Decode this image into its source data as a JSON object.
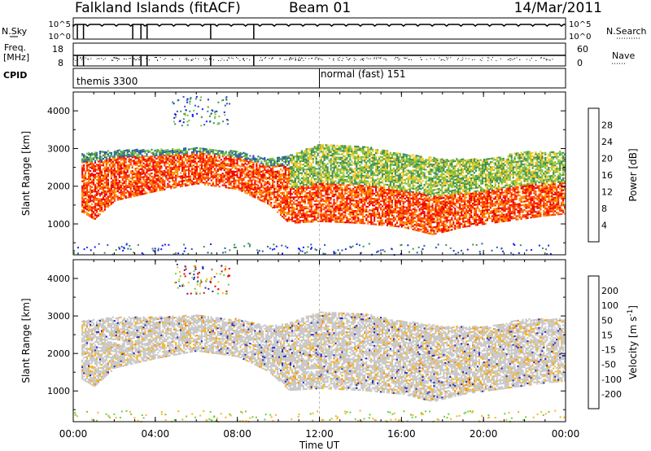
{
  "header": {
    "station": "Falkland Islands (fitACF)",
    "beam": "Beam 01",
    "date": "14/Mar/2011"
  },
  "nsky_panel": {
    "left_label": "N.Sky",
    "right_label": "N.Search",
    "left_ticks": [
      "10^5",
      "10^0"
    ],
    "right_ticks": [
      "10^5",
      "10^0"
    ]
  },
  "freq_panel": {
    "left_label_line1": "Freq.",
    "left_label_line2": "[MHz]",
    "right_label": "Nave",
    "left_ticks": [
      "18",
      "8"
    ],
    "right_ticks": [
      "60",
      "0"
    ]
  },
  "cpid_panel": {
    "label": "CPID",
    "modes": [
      {
        "name": "themis 3300",
        "start_hour": 0.0
      },
      {
        "name": "normal (fast) 151",
        "start_hour": 12.0
      }
    ]
  },
  "chart_data": [
    {
      "type": "heatmap",
      "title": "Power",
      "ylabel": "Slant Range [km]",
      "xlabel": "Time UT",
      "xlim_hours": [
        0,
        24
      ],
      "ylim": [
        180,
        4500
      ],
      "x_ticks": [
        "00:00",
        "04:00",
        "08:00",
        "12:00",
        "16:00",
        "20:00",
        "00:00"
      ],
      "y_ticks": [
        1000,
        2000,
        3000,
        4000
      ],
      "colorbar": {
        "label": "Power [dB]",
        "ticks": [
          4,
          8,
          12,
          16,
          20,
          24,
          28
        ],
        "colors": [
          "#1a1aff",
          "#2e57b0",
          "#3c8f55",
          "#7ac043",
          "#f2c81f",
          "#ff8c00",
          "#ff4000",
          "#ee0000"
        ]
      },
      "echo_band_lower_km": [
        [
          0.4,
          1300
        ],
        [
          1.0,
          1100
        ],
        [
          2.0,
          1600
        ],
        [
          4.0,
          1850
        ],
        [
          6.0,
          2050
        ],
        [
          8.0,
          1900
        ],
        [
          9.5,
          1500
        ],
        [
          10.5,
          1000
        ],
        [
          12.0,
          1050
        ],
        [
          14.0,
          1000
        ],
        [
          16.0,
          900
        ],
        [
          17.5,
          700
        ],
        [
          19.0,
          900
        ],
        [
          21.0,
          1050
        ],
        [
          23.0,
          1200
        ],
        [
          24.0,
          1250
        ]
      ],
      "echo_band_upper_km": [
        [
          0.4,
          2850
        ],
        [
          2.0,
          2950
        ],
        [
          4.0,
          2950
        ],
        [
          6.0,
          3000
        ],
        [
          8.0,
          2900
        ],
        [
          9.5,
          2700
        ],
        [
          10.5,
          2800
        ],
        [
          12.0,
          3100
        ],
        [
          14.0,
          3050
        ],
        [
          16.0,
          2850
        ],
        [
          18.0,
          2700
        ],
        [
          20.0,
          2700
        ],
        [
          22.0,
          2900
        ],
        [
          24.0,
          2900
        ]
      ]
    },
    {
      "type": "heatmap",
      "title": "Velocity",
      "ylabel": "Slant Range [km]",
      "xlabel": "Time UT",
      "xlim_hours": [
        0,
        24
      ],
      "ylim": [
        180,
        4500
      ],
      "x_ticks": [
        "00:00",
        "04:00",
        "08:00",
        "12:00",
        "16:00",
        "20:00",
        "00:00"
      ],
      "y_ticks": [
        1000,
        2000,
        3000,
        4000
      ],
      "colorbar": {
        "label": "Velocity [m s^-1]",
        "ticks": [
          200,
          100,
          50,
          15,
          -15,
          -50,
          -100,
          -200
        ],
        "colors": [
          "#2a2ab8",
          "#2e6a9a",
          "#3a9a4a",
          "#6ccf3c",
          "#c8c8c8",
          "#f7b51c",
          "#ff8a00",
          "#ff5000",
          "#ee0000"
        ]
      }
    }
  ]
}
